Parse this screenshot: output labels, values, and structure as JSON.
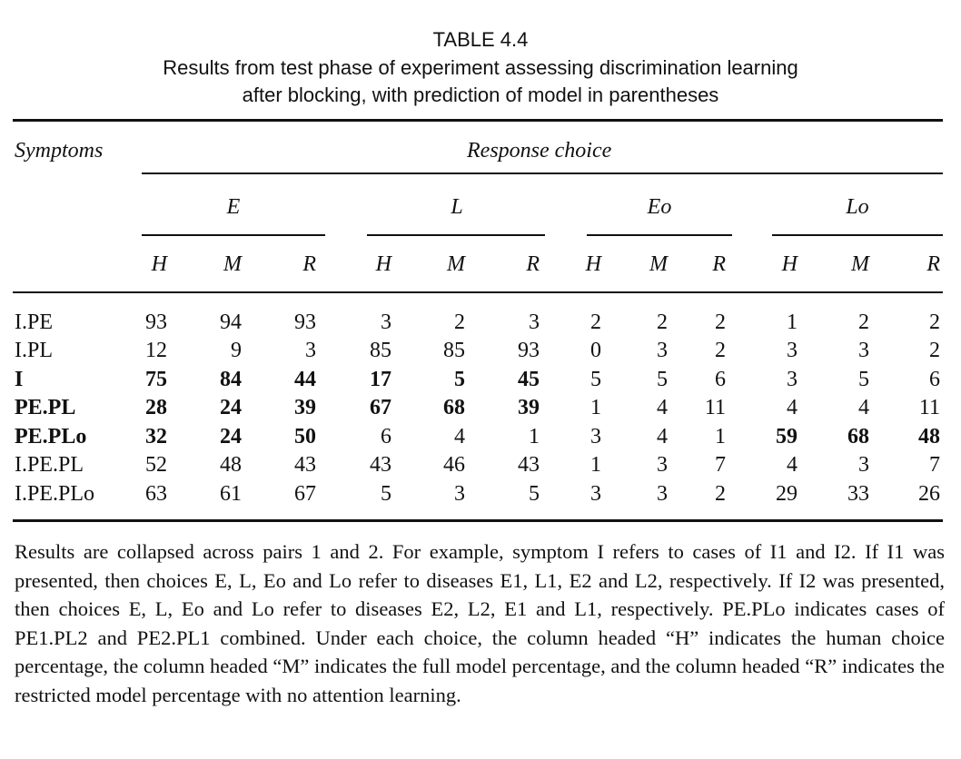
{
  "caption": {
    "label": "TABLE 4.4",
    "title_line1": "Results from test phase of experiment assessing discrimination learning",
    "title_line2": "after blocking, with prediction of model in parentheses"
  },
  "headers": {
    "symptoms": "Symptoms",
    "response_choice": "Response choice",
    "groups": [
      "E",
      "L",
      "Eo",
      "Lo"
    ],
    "subcols": [
      "H",
      "M",
      "R"
    ]
  },
  "rows": [
    {
      "label": "I.PE",
      "bold": false,
      "values": [
        "93",
        "94",
        "93",
        "3",
        "2",
        "3",
        "2",
        "2",
        "2",
        "1",
        "2",
        "2"
      ],
      "bold_groups": []
    },
    {
      "label": "I.PL",
      "bold": false,
      "values": [
        "12",
        "9",
        "3",
        "85",
        "85",
        "93",
        "0",
        "3",
        "2",
        "3",
        "3",
        "2"
      ],
      "bold_groups": []
    },
    {
      "label": "I",
      "bold": true,
      "values": [
        "75",
        "84",
        "44",
        "17",
        "5",
        "45",
        "5",
        "5",
        "6",
        "3",
        "5",
        "6"
      ],
      "bold_groups": [
        0,
        1
      ]
    },
    {
      "label": "PE.PL",
      "bold": true,
      "values": [
        "28",
        "24",
        "39",
        "67",
        "68",
        "39",
        "1",
        "4",
        "11",
        "4",
        "4",
        "11"
      ],
      "bold_groups": [
        0,
        1
      ]
    },
    {
      "label": "PE.PLo",
      "bold": true,
      "values": [
        "32",
        "24",
        "50",
        "6",
        "4",
        "1",
        "3",
        "4",
        "1",
        "59",
        "68",
        "48"
      ],
      "bold_groups": [
        0,
        3
      ]
    },
    {
      "label": "I.PE.PL",
      "bold": false,
      "values": [
        "52",
        "48",
        "43",
        "43",
        "46",
        "43",
        "1",
        "3",
        "7",
        "4",
        "3",
        "7"
      ],
      "bold_groups": []
    },
    {
      "label": "I.PE.PLo",
      "bold": false,
      "values": [
        "63",
        "61",
        "67",
        "5",
        "3",
        "5",
        "3",
        "3",
        "2",
        "29",
        "33",
        "26"
      ],
      "bold_groups": []
    }
  ],
  "footnote": "Results are collapsed across pairs 1 and 2. For example, symptom I refers to cases of I1 and I2. If I1 was presented, then choices E, L, Eo and Lo refer to diseases E1, L1, E2 and L2, respectively. If I2 was presented, then choices E, L, Eo and Lo refer to diseases E2, L2, E1 and L1, respectively. PE.PLo indicates cases of PE1.PL2 and PE2.PL1 combined. Under each choice, the column headed “H” indicates the human choice percentage, the column headed “M” indicates the full model percentage, and the column headed “R” indicates the restricted model percentage with no attention learning."
}
